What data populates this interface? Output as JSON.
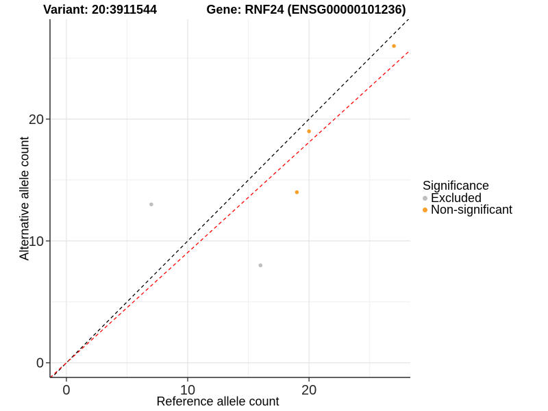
{
  "chart_data": {
    "type": "scatter",
    "title_left": "Variant: 20:3911544",
    "title_right": "Gene: RNF24 (ENSG00000101236)",
    "xlabel": "Reference allele count",
    "ylabel": "Alternative allele count",
    "xlim": [
      -1.35,
      28.35
    ],
    "ylim": [
      -1.2,
      28.2
    ],
    "x_ticks": [
      0,
      10,
      20
    ],
    "y_ticks": [
      0,
      10,
      20
    ],
    "x_minor_ticks": [
      5,
      15,
      25
    ],
    "y_minor_ticks": [
      5,
      15,
      25
    ],
    "grid": true,
    "series": [
      {
        "name": "Excluded",
        "color": "#BEBEBE",
        "points": [
          [
            7,
            13
          ],
          [
            16,
            8
          ]
        ]
      },
      {
        "name": "Non-significant",
        "color": "#F9A02B",
        "points": [
          [
            19,
            14
          ],
          [
            20,
            19
          ],
          [
            27,
            26
          ]
        ]
      }
    ],
    "lines": [
      {
        "name": "identity-line",
        "slope": 1,
        "intercept": 0,
        "color": "#000000",
        "dashed": true
      },
      {
        "name": "expected-ratio-line",
        "slope": 0.905,
        "intercept": 0,
        "color": "#FF0000",
        "dashed": true
      }
    ],
    "legend": {
      "title": "Significance",
      "position": "right",
      "items": [
        "Excluded",
        "Non-significant"
      ]
    },
    "colors": {
      "grid_major": "#E4E4E4",
      "grid_minor": "#F1F1F1",
      "axis_line": "#2B2B2B",
      "tick_label": "#262626"
    }
  }
}
